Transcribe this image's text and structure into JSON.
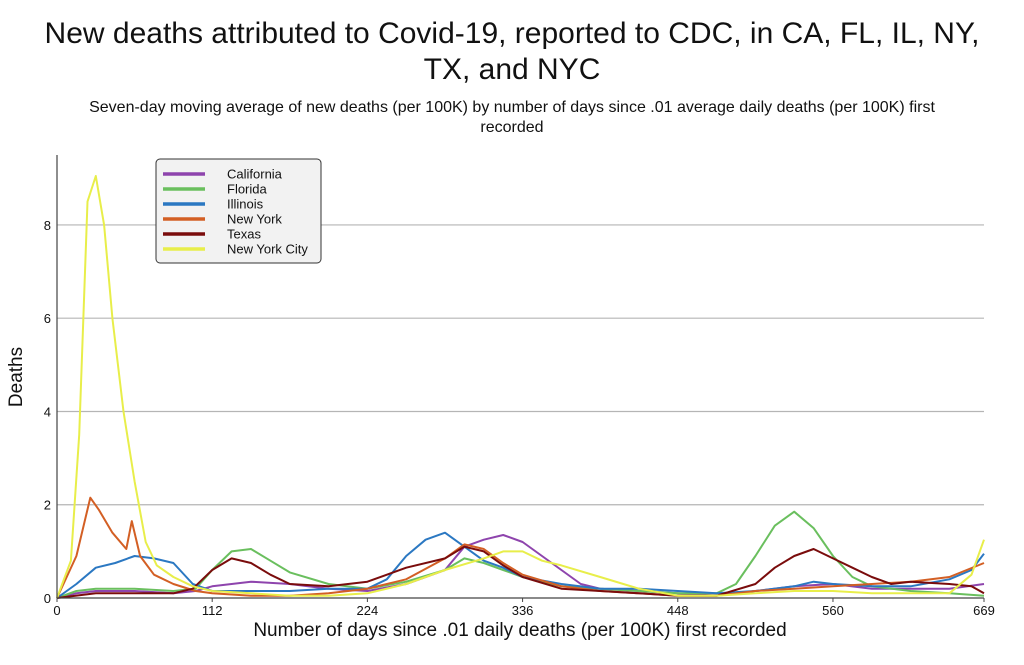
{
  "chart_data": {
    "type": "line",
    "title_line1": "New deaths attributed to Covid-19, reported to CDC, in CA, FL, IL, NY,",
    "title_line2": "TX, and NYC",
    "subtitle_line1": "Seven-day moving average of new deaths (per 100K) by number of days since .01 average daily deaths (per 100K) first",
    "subtitle_line2": "recorded",
    "xlabel": "Number of days since .01 daily deaths (per 100K) first recorded",
    "ylabel": "Deaths",
    "xlim": [
      0,
      669
    ],
    "ylim": [
      0,
      9.5
    ],
    "xticks": [
      0,
      112,
      224,
      336,
      448,
      560,
      669
    ],
    "yticks": [
      0,
      2,
      4,
      6,
      8
    ],
    "grid": "horizontal",
    "legend_position": "top-left",
    "series": [
      {
        "name": "California",
        "color": "#8e44ad",
        "points": [
          [
            0,
            0
          ],
          [
            14,
            0.1
          ],
          [
            28,
            0.15
          ],
          [
            56,
            0.15
          ],
          [
            84,
            0.1
          ],
          [
            100,
            0.15
          ],
          [
            112,
            0.25
          ],
          [
            140,
            0.35
          ],
          [
            168,
            0.3
          ],
          [
            196,
            0.2
          ],
          [
            224,
            0.15
          ],
          [
            252,
            0.3
          ],
          [
            280,
            0.6
          ],
          [
            294,
            1.1
          ],
          [
            308,
            1.25
          ],
          [
            322,
            1.35
          ],
          [
            336,
            1.2
          ],
          [
            350,
            0.9
          ],
          [
            364,
            0.6
          ],
          [
            378,
            0.3
          ],
          [
            392,
            0.2
          ],
          [
            420,
            0.15
          ],
          [
            448,
            0.1
          ],
          [
            476,
            0.05
          ],
          [
            504,
            0.15
          ],
          [
            532,
            0.25
          ],
          [
            560,
            0.3
          ],
          [
            588,
            0.2
          ],
          [
            616,
            0.2
          ],
          [
            644,
            0.2
          ],
          [
            669,
            0.3
          ]
        ]
      },
      {
        "name": "Florida",
        "color": "#6abf5e",
        "points": [
          [
            0,
            0
          ],
          [
            14,
            0.15
          ],
          [
            28,
            0.2
          ],
          [
            56,
            0.2
          ],
          [
            84,
            0.15
          ],
          [
            100,
            0.2
          ],
          [
            112,
            0.6
          ],
          [
            126,
            1.0
          ],
          [
            140,
            1.05
          ],
          [
            154,
            0.8
          ],
          [
            168,
            0.55
          ],
          [
            196,
            0.3
          ],
          [
            224,
            0.2
          ],
          [
            252,
            0.35
          ],
          [
            280,
            0.6
          ],
          [
            294,
            0.85
          ],
          [
            308,
            0.75
          ],
          [
            322,
            0.6
          ],
          [
            336,
            0.45
          ],
          [
            364,
            0.25
          ],
          [
            392,
            0.2
          ],
          [
            420,
            0.15
          ],
          [
            448,
            0.1
          ],
          [
            476,
            0.1
          ],
          [
            490,
            0.3
          ],
          [
            504,
            0.9
          ],
          [
            518,
            1.55
          ],
          [
            532,
            1.85
          ],
          [
            546,
            1.5
          ],
          [
            560,
            0.9
          ],
          [
            574,
            0.45
          ],
          [
            588,
            0.25
          ],
          [
            616,
            0.15
          ],
          [
            644,
            0.1
          ],
          [
            669,
            0.05
          ]
        ]
      },
      {
        "name": "Illinois",
        "color": "#2b78c2",
        "points": [
          [
            0,
            0
          ],
          [
            14,
            0.3
          ],
          [
            28,
            0.65
          ],
          [
            42,
            0.75
          ],
          [
            56,
            0.9
          ],
          [
            70,
            0.85
          ],
          [
            84,
            0.75
          ],
          [
            98,
            0.3
          ],
          [
            112,
            0.15
          ],
          [
            140,
            0.15
          ],
          [
            168,
            0.15
          ],
          [
            196,
            0.2
          ],
          [
            224,
            0.2
          ],
          [
            238,
            0.4
          ],
          [
            252,
            0.9
          ],
          [
            266,
            1.25
          ],
          [
            280,
            1.4
          ],
          [
            294,
            1.1
          ],
          [
            308,
            0.8
          ],
          [
            322,
            0.65
          ],
          [
            336,
            0.45
          ],
          [
            364,
            0.3
          ],
          [
            392,
            0.2
          ],
          [
            420,
            0.2
          ],
          [
            448,
            0.15
          ],
          [
            476,
            0.1
          ],
          [
            504,
            0.15
          ],
          [
            532,
            0.25
          ],
          [
            546,
            0.35
          ],
          [
            560,
            0.3
          ],
          [
            588,
            0.25
          ],
          [
            616,
            0.25
          ],
          [
            644,
            0.4
          ],
          [
            660,
            0.6
          ],
          [
            669,
            0.95
          ]
        ]
      },
      {
        "name": "New York",
        "color": "#d35f24",
        "points": [
          [
            0,
            0
          ],
          [
            14,
            0.9
          ],
          [
            24,
            2.15
          ],
          [
            30,
            1.9
          ],
          [
            40,
            1.4
          ],
          [
            50,
            1.05
          ],
          [
            54,
            1.65
          ],
          [
            60,
            0.9
          ],
          [
            70,
            0.5
          ],
          [
            84,
            0.3
          ],
          [
            100,
            0.15
          ],
          [
            112,
            0.1
          ],
          [
            140,
            0.05
          ],
          [
            168,
            0.05
          ],
          [
            196,
            0.1
          ],
          [
            224,
            0.2
          ],
          [
            252,
            0.4
          ],
          [
            280,
            0.85
          ],
          [
            294,
            1.15
          ],
          [
            308,
            1.05
          ],
          [
            322,
            0.75
          ],
          [
            336,
            0.5
          ],
          [
            364,
            0.25
          ],
          [
            392,
            0.15
          ],
          [
            420,
            0.1
          ],
          [
            448,
            0.05
          ],
          [
            476,
            0.05
          ],
          [
            504,
            0.15
          ],
          [
            532,
            0.2
          ],
          [
            560,
            0.25
          ],
          [
            588,
            0.3
          ],
          [
            616,
            0.35
          ],
          [
            644,
            0.45
          ],
          [
            669,
            0.75
          ]
        ]
      },
      {
        "name": "Texas",
        "color": "#7a0c0c",
        "points": [
          [
            0,
            0
          ],
          [
            28,
            0.1
          ],
          [
            56,
            0.1
          ],
          [
            84,
            0.1
          ],
          [
            98,
            0.2
          ],
          [
            112,
            0.6
          ],
          [
            126,
            0.85
          ],
          [
            140,
            0.75
          ],
          [
            154,
            0.5
          ],
          [
            168,
            0.3
          ],
          [
            196,
            0.25
          ],
          [
            224,
            0.35
          ],
          [
            252,
            0.65
          ],
          [
            280,
            0.85
          ],
          [
            294,
            1.1
          ],
          [
            308,
            1.0
          ],
          [
            322,
            0.7
          ],
          [
            336,
            0.45
          ],
          [
            364,
            0.2
          ],
          [
            392,
            0.15
          ],
          [
            420,
            0.1
          ],
          [
            448,
            0.05
          ],
          [
            476,
            0.05
          ],
          [
            504,
            0.3
          ],
          [
            518,
            0.65
          ],
          [
            532,
            0.9
          ],
          [
            546,
            1.05
          ],
          [
            560,
            0.85
          ],
          [
            574,
            0.65
          ],
          [
            588,
            0.45
          ],
          [
            602,
            0.3
          ],
          [
            616,
            0.35
          ],
          [
            644,
            0.3
          ],
          [
            660,
            0.25
          ],
          [
            669,
            0.1
          ]
        ]
      },
      {
        "name": "New York City",
        "color": "#e8ee4a",
        "points": [
          [
            0,
            0
          ],
          [
            10,
            0.8
          ],
          [
            16,
            3.5
          ],
          [
            22,
            8.5
          ],
          [
            28,
            9.05
          ],
          [
            34,
            8
          ],
          [
            40,
            6
          ],
          [
            48,
            4
          ],
          [
            56,
            2.5
          ],
          [
            64,
            1.2
          ],
          [
            72,
            0.7
          ],
          [
            84,
            0.45
          ],
          [
            98,
            0.25
          ],
          [
            112,
            0.15
          ],
          [
            140,
            0.1
          ],
          [
            168,
            0.05
          ],
          [
            196,
            0.05
          ],
          [
            224,
            0.1
          ],
          [
            252,
            0.3
          ],
          [
            280,
            0.6
          ],
          [
            308,
            0.85
          ],
          [
            322,
            1.0
          ],
          [
            336,
            1.0
          ],
          [
            350,
            0.8
          ],
          [
            364,
            0.7
          ],
          [
            392,
            0.45
          ],
          [
            420,
            0.2
          ],
          [
            448,
            0.05
          ],
          [
            476,
            0.05
          ],
          [
            504,
            0.1
          ],
          [
            532,
            0.15
          ],
          [
            560,
            0.15
          ],
          [
            588,
            0.1
          ],
          [
            616,
            0.1
          ],
          [
            644,
            0.1
          ],
          [
            660,
            0.5
          ],
          [
            669,
            1.25
          ]
        ]
      }
    ]
  }
}
